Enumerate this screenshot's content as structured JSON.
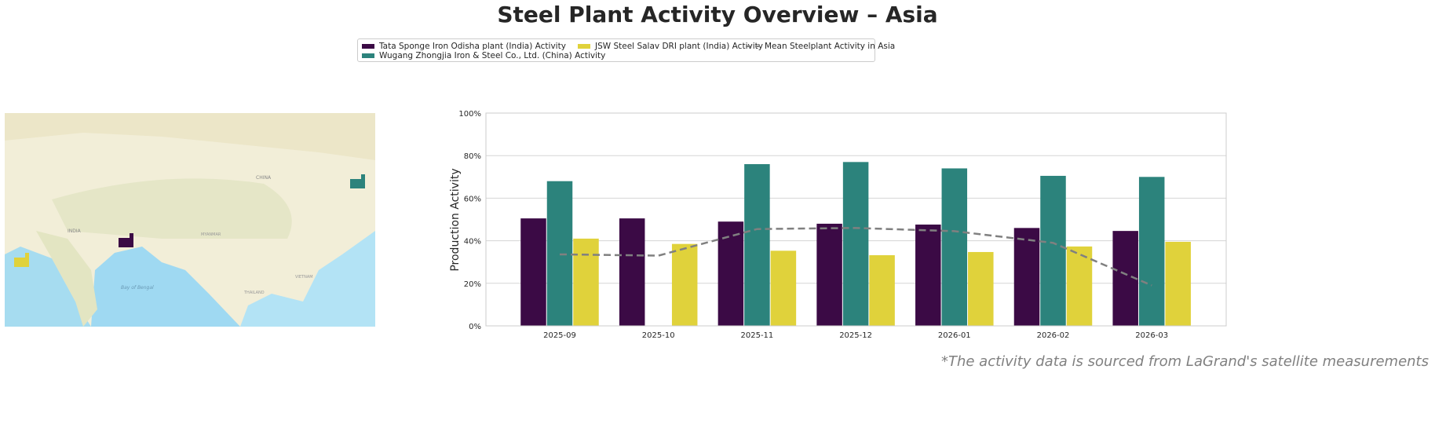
{
  "title": "Steel Plant Activity Overview – Asia",
  "footnote": "*The activity data is sourced from LaGrand's satellite measurements",
  "legend": [
    {
      "label": "Tata Sponge Iron Odisha plant (India) Activity",
      "color": "#3b0a45"
    },
    {
      "label": "Wugang Zhongjia Iron & Steel Co., Ltd. (China) Activity",
      "color": "#2c837c"
    },
    {
      "label": "JSW Steel Salav DRI plant (India) Activity",
      "color": "#e0d23b"
    },
    {
      "label": "Mean Steelplant Activity in Asia",
      "color": "#808080"
    }
  ],
  "map": {
    "labels": [
      "CHINA",
      "INDIA",
      "Bay of Bengal",
      "MYANMAR",
      "THAILAND",
      "VIETNAM"
    ],
    "markers": [
      {
        "plant": "Tata Sponge Iron Odisha plant (India)",
        "icon": "factory-icon",
        "color": "#3b0a45"
      },
      {
        "plant": "Wugang Zhongjia Iron & Steel Co., Ltd. (China)",
        "icon": "factory-icon",
        "color": "#2c837c"
      },
      {
        "plant": "JSW Steel Salav DRI plant (India)",
        "icon": "factory-icon",
        "color": "#e0d23b"
      }
    ]
  },
  "chart_data": {
    "type": "bar",
    "title": "",
    "xlabel": "",
    "ylabel": "Production Activity",
    "ylim": [
      0,
      100
    ],
    "yticks": [
      "0%",
      "20%",
      "40%",
      "60%",
      "80%",
      "100%"
    ],
    "grid": true,
    "legend_position": "top-center",
    "categories": [
      "2025-09",
      "2025-10",
      "2025-11",
      "2025-12",
      "2026-01",
      "2026-02",
      "2026-03"
    ],
    "series": [
      {
        "name": "Tata Sponge Iron Odisha plant (India) Activity",
        "color": "#3b0a45",
        "values": [
          50.5,
          50.5,
          49,
          48,
          47.6,
          46,
          44.6
        ]
      },
      {
        "name": "Wugang Zhongjia Iron & Steel Co., Ltd. (China) Activity",
        "color": "#2c837c",
        "values": [
          68,
          null,
          76,
          77,
          74,
          70.5,
          70
        ]
      },
      {
        "name": "JSW Steel Salav DRI plant (India) Activity",
        "color": "#e0d23b",
        "values": [
          41,
          38.5,
          35.3,
          33.2,
          34.7,
          37.3,
          39.5
        ]
      }
    ],
    "line": {
      "name": "Mean Steelplant Activity in Asia",
      "color": "#808080",
      "style": "dashed",
      "values": [
        33.6,
        33,
        45.5,
        46,
        44.5,
        39,
        19
      ]
    }
  }
}
